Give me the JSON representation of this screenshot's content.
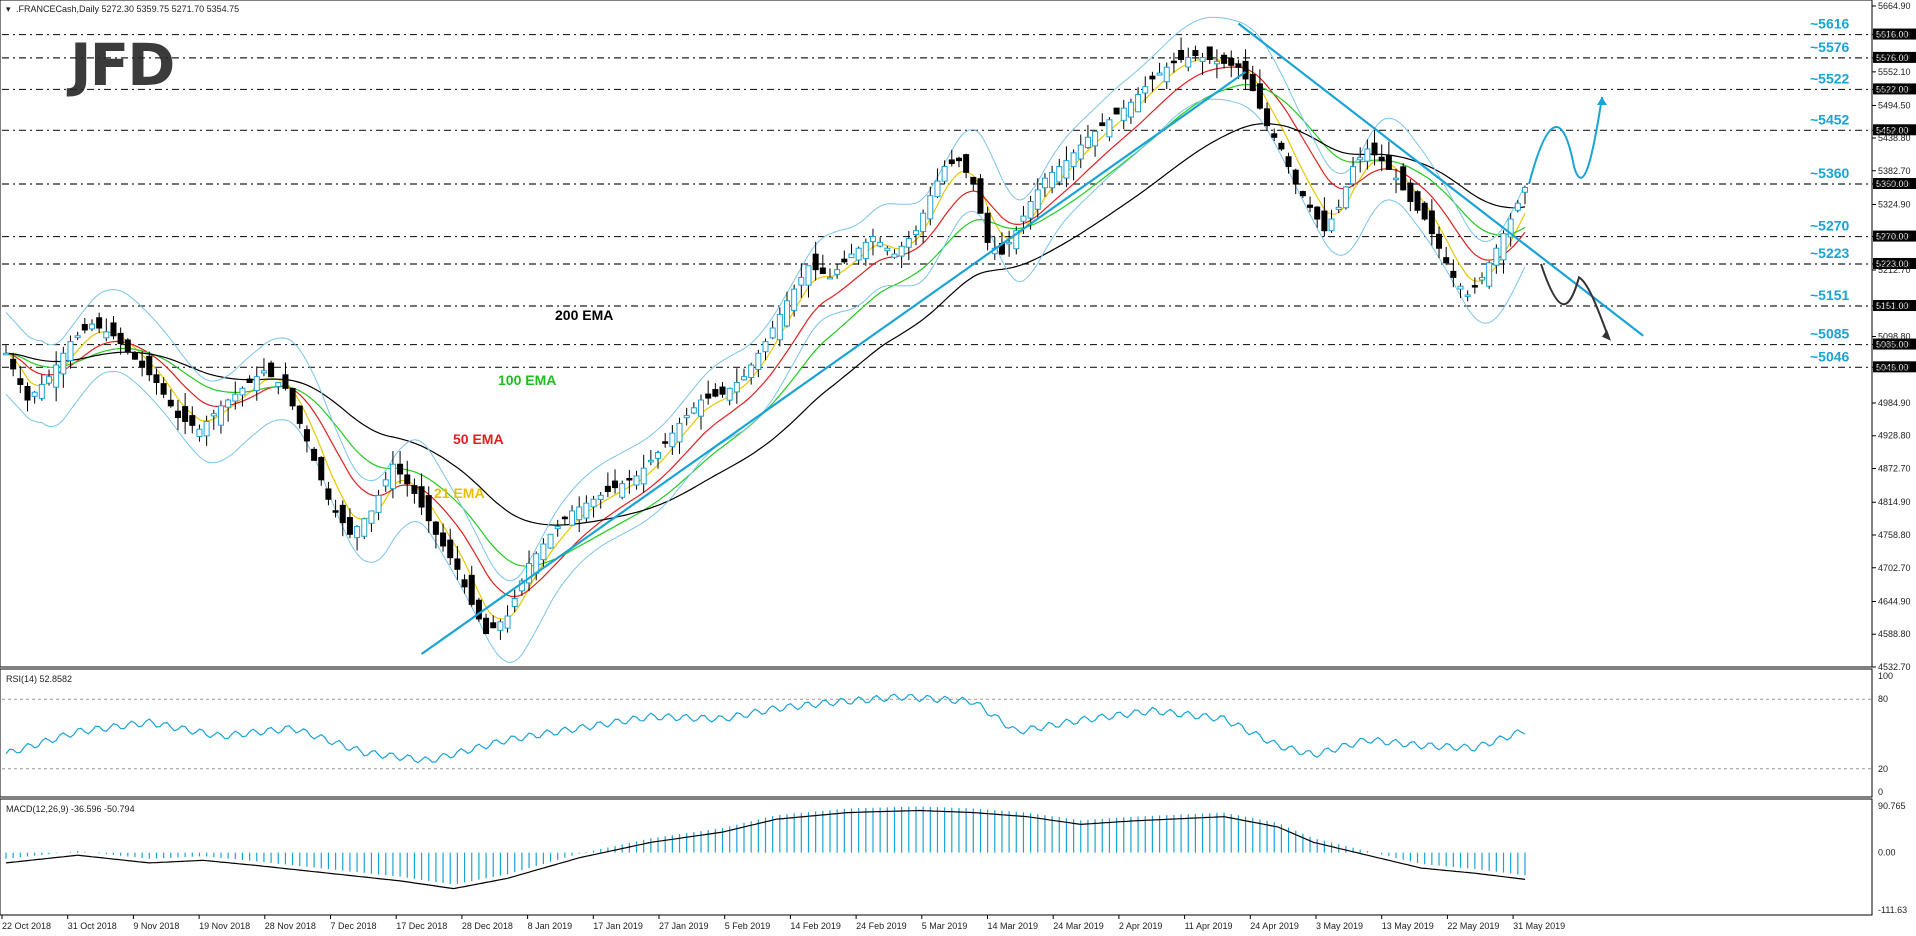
{
  "header": {
    "symbol_line": ".FRANCECash,Daily  5272.30 5359.75 5271.70 5354.75"
  },
  "logo": {
    "text": "JFD"
  },
  "rsi_panel": {
    "label": "RSI(14) 52.8582",
    "ticks": [
      "100",
      "80",
      "20",
      "0"
    ]
  },
  "macd_panel": {
    "label": "MACD(12,26,9) -36.596 -50.794",
    "ticks": [
      "90.765",
      "0.00",
      "-111.63"
    ]
  },
  "chart_data": {
    "type": "candlestick",
    "title": "",
    "y_axis": {
      "ylim": [
        4532.7,
        5664.9
      ],
      "tick_labels": [
        "5664.90",
        "5616.00",
        "5576.00",
        "5552.10",
        "5522.00",
        "5494.50",
        "5452.00",
        "5438.80",
        "5382.70",
        "5360.00",
        "5324.90",
        "5270.00",
        "5223.00",
        "5212.70",
        "5151.00",
        "5098.80",
        "5085.00",
        "5046.00",
        "4984.90",
        "4928.80",
        "4872.70",
        "4814.90",
        "4758.80",
        "4702.70",
        "4644.90",
        "4588.80",
        "4532.70"
      ]
    },
    "x_axis": {
      "tick_labels": [
        "22 Oct 2018",
        "31 Oct 2018",
        "9 Nov 2018",
        "19 Nov 2018",
        "28 Nov 2018",
        "7 Dec 2018",
        "17 Dec 2018",
        "28 Dec 2018",
        "8 Jan 2019",
        "17 Jan 2019",
        "27 Jan 2019",
        "5 Feb 2019",
        "14 Feb 2019",
        "24 Feb 2019",
        "5 Mar 2019",
        "14 Mar 2019",
        "24 Mar 2019",
        "2 Apr 2019",
        "11 Apr 2019",
        "24 Apr 2019",
        "3 May 2019",
        "13 May 2019",
        "22 May 2019",
        "31 May 2019"
      ]
    },
    "levels": [
      {
        "label": "~5616",
        "value": 5616
      },
      {
        "label": "~5576",
        "value": 5576
      },
      {
        "label": "~5522",
        "value": 5522
      },
      {
        "label": "~5452",
        "value": 5452
      },
      {
        "label": "~5360",
        "value": 5360
      },
      {
        "label": "~5270",
        "value": 5270
      },
      {
        "label": "~5223",
        "value": 5223
      },
      {
        "label": "~5151",
        "value": 5151
      },
      {
        "label": "~5085",
        "value": 5085
      },
      {
        "label": "~5046",
        "value": 5046
      }
    ],
    "price_boxes": [
      "5616.00",
      "5576.00",
      "5522.00",
      "5452.00",
      "5360.00",
      "5270.00",
      "5223.00",
      "5151.00",
      "5085.00",
      "5046.00"
    ],
    "series": [
      {
        "name": "200 EMA",
        "color": "#000000"
      },
      {
        "name": "100 EMA",
        "color": "#22cc22"
      },
      {
        "name": "50 EMA",
        "color": "#e02020"
      },
      {
        "name": "21 EMA",
        "color": "#e8c800"
      }
    ],
    "close_path": [
      [
        0,
        5070
      ],
      [
        6,
        4990
      ],
      [
        12,
        5030
      ],
      [
        18,
        5090
      ],
      [
        24,
        5120
      ],
      [
        30,
        5100
      ],
      [
        36,
        5060
      ],
      [
        42,
        5020
      ],
      [
        48,
        4960
      ],
      [
        54,
        4940
      ],
      [
        60,
        4980
      ],
      [
        66,
        5010
      ],
      [
        72,
        5040
      ],
      [
        78,
        5010
      ],
      [
        84,
        4920
      ],
      [
        90,
        4820
      ],
      [
        96,
        4760
      ],
      [
        102,
        4800
      ],
      [
        108,
        4880
      ],
      [
        114,
        4830
      ],
      [
        120,
        4760
      ],
      [
        126,
        4700
      ],
      [
        130,
        4640
      ],
      [
        134,
        4590
      ],
      [
        140,
        4620
      ],
      [
        146,
        4710
      ],
      [
        152,
        4760
      ],
      [
        158,
        4800
      ],
      [
        164,
        4820
      ],
      [
        170,
        4840
      ],
      [
        176,
        4860
      ],
      [
        182,
        4900
      ],
      [
        188,
        4950
      ],
      [
        194,
        4990
      ],
      [
        200,
        5000
      ],
      [
        206,
        5030
      ],
      [
        212,
        5090
      ],
      [
        218,
        5160
      ],
      [
        224,
        5220
      ],
      [
        230,
        5200
      ],
      [
        236,
        5240
      ],
      [
        242,
        5270
      ],
      [
        248,
        5240
      ],
      [
        254,
        5280
      ],
      [
        258,
        5340
      ],
      [
        262,
        5390
      ],
      [
        266,
        5400
      ],
      [
        270,
        5360
      ],
      [
        274,
        5260
      ],
      [
        278,
        5240
      ],
      [
        282,
        5280
      ],
      [
        286,
        5330
      ],
      [
        290,
        5370
      ],
      [
        296,
        5400
      ],
      [
        302,
        5440
      ],
      [
        308,
        5470
      ],
      [
        314,
        5500
      ],
      [
        320,
        5540
      ],
      [
        326,
        5570
      ],
      [
        332,
        5580
      ],
      [
        338,
        5570
      ],
      [
        344,
        5560
      ],
      [
        348,
        5520
      ],
      [
        352,
        5460
      ],
      [
        356,
        5420
      ],
      [
        360,
        5360
      ],
      [
        364,
        5320
      ],
      [
        368,
        5280
      ],
      [
        372,
        5320
      ],
      [
        376,
        5390
      ],
      [
        380,
        5420
      ],
      [
        384,
        5400
      ],
      [
        388,
        5370
      ],
      [
        392,
        5330
      ],
      [
        396,
        5300
      ],
      [
        400,
        5250
      ],
      [
        404,
        5200
      ],
      [
        408,
        5170
      ],
      [
        412,
        5200
      ],
      [
        416,
        5250
      ],
      [
        420,
        5300
      ],
      [
        424,
        5354
      ]
    ],
    "trendlines": [
      {
        "name": "uptrend",
        "from": [
          116,
          4555
        ],
        "to": [
          346,
          5552
        ]
      },
      {
        "name": "downtrend",
        "from": [
          344,
          5635
        ],
        "to": [
          457,
          5100
        ]
      }
    ],
    "projections": [
      {
        "name": "bullish-scenario",
        "color": "#1aa3d6",
        "target": 5509
      },
      {
        "name": "bearish-scenario",
        "color": "#333333",
        "target": 5095
      }
    ],
    "rsi_path": [
      [
        0,
        33
      ],
      [
        20,
        52
      ],
      [
        40,
        60
      ],
      [
        60,
        48
      ],
      [
        80,
        55
      ],
      [
        100,
        34
      ],
      [
        118,
        27
      ],
      [
        140,
        45
      ],
      [
        160,
        55
      ],
      [
        180,
        65
      ],
      [
        200,
        63
      ],
      [
        215,
        72
      ],
      [
        230,
        77
      ],
      [
        250,
        82
      ],
      [
        270,
        78
      ],
      [
        282,
        52
      ],
      [
        300,
        62
      ],
      [
        320,
        70
      ],
      [
        340,
        63
      ],
      [
        355,
        40
      ],
      [
        365,
        32
      ],
      [
        380,
        45
      ],
      [
        395,
        40
      ],
      [
        410,
        38
      ],
      [
        424,
        53
      ]
    ],
    "macd_path": [
      [
        0,
        -20
      ],
      [
        20,
        -5
      ],
      [
        40,
        -20
      ],
      [
        55,
        -15
      ],
      [
        70,
        -25
      ],
      [
        90,
        -40
      ],
      [
        110,
        -55
      ],
      [
        125,
        -70
      ],
      [
        140,
        -50
      ],
      [
        160,
        -10
      ],
      [
        180,
        20
      ],
      [
        200,
        40
      ],
      [
        215,
        65
      ],
      [
        235,
        78
      ],
      [
        255,
        82
      ],
      [
        270,
        78
      ],
      [
        285,
        70
      ],
      [
        300,
        55
      ],
      [
        315,
        62
      ],
      [
        340,
        70
      ],
      [
        355,
        50
      ],
      [
        365,
        20
      ],
      [
        380,
        -5
      ],
      [
        395,
        -30
      ],
      [
        410,
        -40
      ],
      [
        424,
        -52
      ]
    ]
  }
}
